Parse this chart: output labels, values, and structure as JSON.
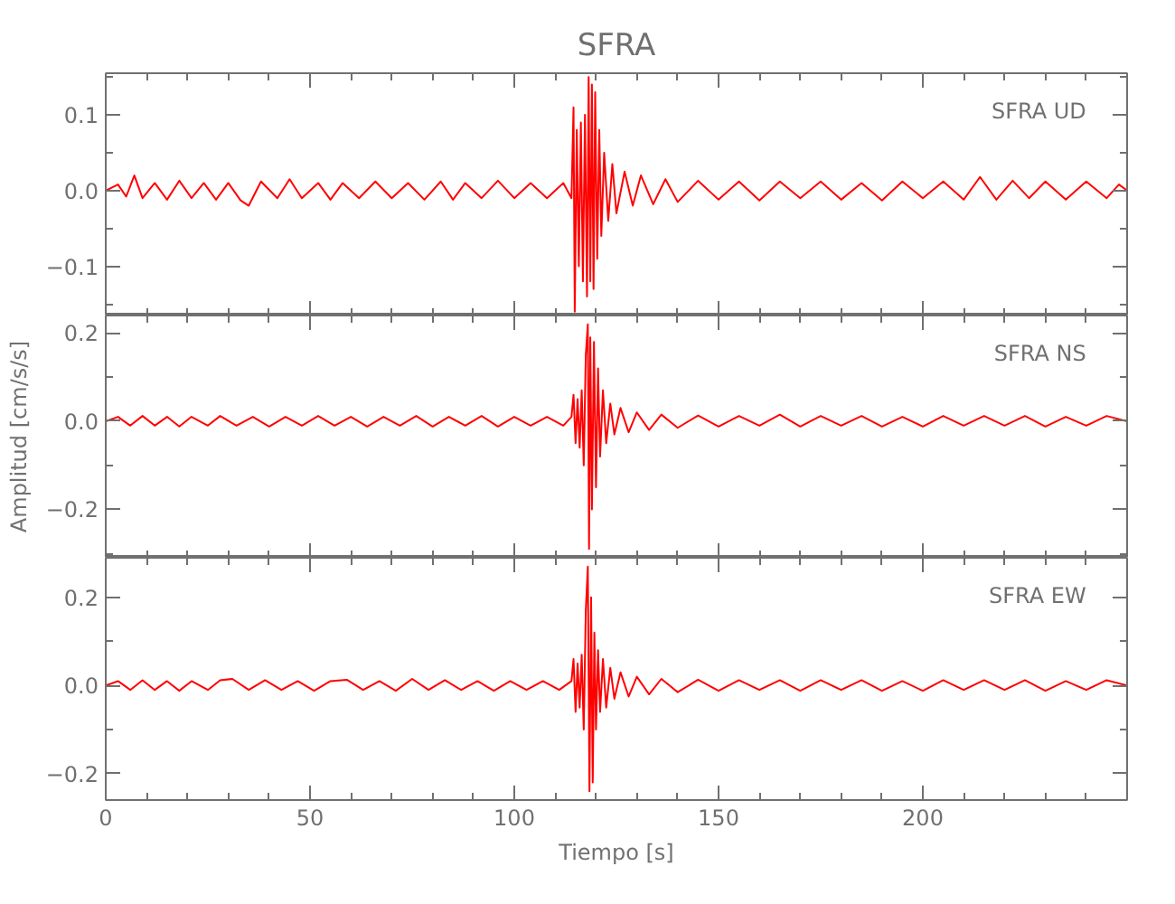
{
  "chart_data": [
    {
      "type": "line",
      "title": "SFRA",
      "annotations": [
        "SFRA   UD"
      ],
      "color": "#ff0000",
      "grid": false,
      "tick_labels": "y",
      "line_style": "solid",
      "x": [
        0,
        3,
        5,
        7,
        9,
        12,
        15,
        18,
        21,
        24,
        27,
        30,
        33,
        35,
        38,
        42,
        45,
        48,
        52,
        55,
        58,
        62,
        66,
        70,
        74,
        78,
        82,
        85,
        88,
        92,
        96,
        100,
        104,
        108,
        112,
        114,
        114.5,
        114.8,
        115.3,
        115.8,
        116.3,
        116.8,
        117.3,
        117.8,
        118.2,
        118.6,
        119.0,
        119.4,
        119.8,
        120.3,
        120.8,
        121.3,
        122,
        123,
        124,
        125,
        127,
        129,
        131,
        134,
        137,
        140,
        145,
        150,
        155,
        160,
        165,
        170,
        175,
        180,
        185,
        190,
        195,
        200,
        205,
        210,
        214,
        218,
        222,
        226,
        230,
        235,
        240,
        245,
        248,
        250
      ],
      "values": [
        0.0,
        0.008,
        -0.008,
        0.02,
        -0.01,
        0.01,
        -0.012,
        0.013,
        -0.01,
        0.01,
        -0.012,
        0.01,
        -0.013,
        -0.02,
        0.012,
        -0.01,
        0.015,
        -0.01,
        0.01,
        -0.012,
        0.01,
        -0.01,
        0.012,
        -0.01,
        0.01,
        -0.012,
        0.012,
        -0.012,
        0.01,
        -0.01,
        0.013,
        -0.01,
        0.01,
        -0.01,
        0.01,
        -0.01,
        0.11,
        -0.16,
        0.08,
        -0.1,
        0.09,
        -0.12,
        0.1,
        -0.14,
        0.15,
        -0.12,
        0.14,
        -0.13,
        0.13,
        -0.09,
        0.08,
        -0.06,
        0.05,
        -0.04,
        0.035,
        -0.03,
        0.025,
        -0.02,
        0.02,
        -0.018,
        0.015,
        -0.015,
        0.013,
        -0.012,
        0.012,
        -0.013,
        0.012,
        -0.01,
        0.012,
        -0.012,
        0.01,
        -0.013,
        0.012,
        -0.01,
        0.012,
        -0.012,
        0.018,
        -0.012,
        0.013,
        -0.01,
        0.012,
        -0.012,
        0.012,
        -0.01,
        0.008,
        0.0
      ],
      "xlim": [
        0,
        250
      ],
      "ylim": [
        -0.165,
        0.155
      ],
      "xticks": [
        0,
        {
          "value": 10,
          "label": null
        },
        {
          "value": 20,
          "label": null
        },
        {
          "value": 30,
          "label": null
        },
        {
          "value": 40,
          "label": null
        },
        50,
        {
          "value": 60,
          "label": null
        },
        {
          "value": 70,
          "label": null
        },
        {
          "value": 80,
          "label": null
        },
        {
          "value": 90,
          "label": null
        },
        100,
        {
          "value": 110,
          "label": null
        },
        {
          "value": 120,
          "label": null
        },
        {
          "value": 130,
          "label": null
        },
        {
          "value": 140,
          "label": null
        },
        150,
        {
          "value": 160,
          "label": null
        },
        {
          "value": 170,
          "label": null
        },
        {
          "value": 180,
          "label": null
        },
        {
          "value": 190,
          "label": null
        },
        200,
        {
          "value": 210,
          "label": null
        },
        {
          "value": 220,
          "label": null
        },
        {
          "value": 230,
          "label": null
        },
        {
          "value": 240,
          "label": null
        }
      ],
      "yticks": [
        {
          "value": -0.15,
          "label": null
        },
        -0.1,
        {
          "value": -0.05,
          "label": null
        },
        {
          "value": 0,
          "label": "0.0"
        },
        {
          "value": 0.05,
          "label": null
        },
        0.1,
        {
          "value": 0.15,
          "label": null
        }
      ]
    },
    {
      "type": "line",
      "ylabel": "Amplitud [cm/s/s]",
      "annotations": [
        "SFRA   NS"
      ],
      "color": "#ff0000",
      "grid": false,
      "tick_labels": "y",
      "line_style": "solid",
      "x": [
        0,
        3,
        6,
        9,
        12,
        15,
        18,
        21,
        25,
        28,
        32,
        36,
        40,
        44,
        48,
        52,
        56,
        60,
        64,
        68,
        72,
        76,
        80,
        84,
        88,
        92,
        96,
        100,
        104,
        108,
        112,
        114,
        114.5,
        115,
        115.5,
        116,
        116.5,
        117,
        117.5,
        118,
        118.3,
        118.6,
        119,
        119.5,
        120,
        120.5,
        121,
        121.7,
        122.5,
        123.5,
        124.5,
        126,
        128,
        130,
        133,
        136,
        140,
        145,
        150,
        155,
        160,
        165,
        170,
        175,
        180,
        185,
        190,
        195,
        200,
        205,
        210,
        215,
        220,
        225,
        230,
        235,
        240,
        245,
        250
      ],
      "values": [
        0.0,
        0.01,
        -0.01,
        0.012,
        -0.01,
        0.01,
        -0.012,
        0.01,
        -0.01,
        0.012,
        -0.01,
        0.01,
        -0.012,
        0.01,
        -0.01,
        0.012,
        -0.01,
        0.01,
        -0.012,
        0.01,
        -0.01,
        0.012,
        -0.012,
        0.01,
        -0.01,
        0.012,
        -0.012,
        0.01,
        -0.01,
        0.01,
        -0.01,
        0.01,
        0.06,
        -0.05,
        0.05,
        -0.06,
        0.07,
        -0.1,
        0.15,
        0.22,
        -0.29,
        0.19,
        -0.2,
        0.18,
        -0.15,
        0.12,
        -0.08,
        0.07,
        -0.05,
        0.04,
        -0.03,
        0.03,
        -0.025,
        0.02,
        -0.02,
        0.015,
        -0.015,
        0.013,
        -0.012,
        0.012,
        -0.01,
        0.015,
        -0.012,
        0.012,
        -0.01,
        0.012,
        -0.012,
        0.01,
        -0.012,
        0.012,
        -0.01,
        0.012,
        -0.01,
        0.012,
        -0.012,
        0.01,
        -0.01,
        0.012,
        0.0
      ],
      "xlim": [
        0,
        250
      ],
      "ylim": [
        -0.31,
        0.24
      ],
      "xticks": [
        0,
        {
          "value": 10,
          "label": null
        },
        {
          "value": 20,
          "label": null
        },
        {
          "value": 30,
          "label": null
        },
        {
          "value": 40,
          "label": null
        },
        50,
        {
          "value": 60,
          "label": null
        },
        {
          "value": 70,
          "label": null
        },
        {
          "value": 80,
          "label": null
        },
        {
          "value": 90,
          "label": null
        },
        100,
        {
          "value": 110,
          "label": null
        },
        {
          "value": 120,
          "label": null
        },
        {
          "value": 130,
          "label": null
        },
        {
          "value": 140,
          "label": null
        },
        150,
        {
          "value": 160,
          "label": null
        },
        {
          "value": 170,
          "label": null
        },
        {
          "value": 180,
          "label": null
        },
        {
          "value": 190,
          "label": null
        },
        200,
        {
          "value": 210,
          "label": null
        },
        {
          "value": 220,
          "label": null
        },
        {
          "value": 230,
          "label": null
        },
        {
          "value": 240,
          "label": null
        }
      ],
      "yticks": [
        {
          "value": -0.3,
          "label": null
        },
        -0.2,
        {
          "value": -0.1,
          "label": null
        },
        {
          "value": 0,
          "label": "0.0"
        },
        {
          "value": 0.1,
          "label": null
        },
        0.2
      ]
    },
    {
      "type": "line",
      "xlabel": "Tiempo [s]",
      "annotations": [
        "SFRA   EW"
      ],
      "color": "#ff0000",
      "grid": false,
      "line_style": "solid",
      "x": [
        0,
        3,
        6,
        9,
        12,
        15,
        18,
        21,
        25,
        28,
        31,
        35,
        39,
        43,
        47,
        51,
        55,
        59,
        63,
        67,
        71,
        75,
        79,
        83,
        87,
        91,
        95,
        99,
        103,
        107,
        111,
        114,
        114.5,
        115,
        115.5,
        116,
        116.5,
        117,
        117.5,
        118,
        118.4,
        118.8,
        119.2,
        119.6,
        120,
        120.5,
        121,
        121.7,
        122.5,
        123.5,
        124.5,
        126,
        128,
        130,
        133,
        136,
        140,
        145,
        150,
        155,
        160,
        165,
        170,
        175,
        180,
        185,
        190,
        195,
        200,
        205,
        210,
        215,
        220,
        225,
        230,
        235,
        240,
        245,
        250
      ],
      "values": [
        0.0,
        0.01,
        -0.01,
        0.012,
        -0.01,
        0.01,
        -0.012,
        0.01,
        -0.01,
        0.012,
        0.015,
        -0.01,
        0.012,
        -0.01,
        0.01,
        -0.012,
        0.01,
        0.013,
        -0.01,
        0.01,
        -0.012,
        0.015,
        -0.01,
        0.012,
        -0.01,
        0.01,
        -0.012,
        0.01,
        -0.01,
        0.01,
        -0.01,
        0.01,
        0.06,
        -0.06,
        0.05,
        -0.05,
        0.07,
        -0.1,
        0.17,
        0.27,
        -0.24,
        0.2,
        -0.22,
        0.12,
        -0.1,
        0.08,
        -0.06,
        0.06,
        -0.05,
        0.04,
        -0.03,
        0.03,
        -0.025,
        0.02,
        -0.02,
        0.015,
        -0.015,
        0.013,
        -0.012,
        0.012,
        -0.01,
        0.012,
        -0.012,
        0.012,
        -0.01,
        0.012,
        -0.012,
        0.01,
        -0.012,
        0.012,
        -0.01,
        0.012,
        -0.01,
        0.012,
        -0.012,
        0.01,
        -0.01,
        0.012,
        0.0
      ],
      "xlim": [
        0,
        250
      ],
      "ylim": [
        -0.26,
        0.29
      ],
      "xticks": [
        0,
        {
          "value": 10,
          "label": null
        },
        {
          "value": 20,
          "label": null
        },
        {
          "value": 30,
          "label": null
        },
        {
          "value": 40,
          "label": null
        },
        50,
        {
          "value": 60,
          "label": null
        },
        {
          "value": 70,
          "label": null
        },
        {
          "value": 80,
          "label": null
        },
        {
          "value": 90,
          "label": null
        },
        100,
        {
          "value": 110,
          "label": null
        },
        {
          "value": 120,
          "label": null
        },
        {
          "value": 130,
          "label": null
        },
        {
          "value": 140,
          "label": null
        },
        150,
        {
          "value": 160,
          "label": null
        },
        {
          "value": 170,
          "label": null
        },
        {
          "value": 180,
          "label": null
        },
        {
          "value": 190,
          "label": null
        },
        200,
        {
          "value": 210,
          "label": null
        },
        {
          "value": 220,
          "label": null
        },
        {
          "value": 230,
          "label": null
        },
        {
          "value": 240,
          "label": null
        }
      ],
      "yticks": [
        -0.2,
        {
          "value": -0.1,
          "label": null
        },
        {
          "value": 0,
          "label": "0.0"
        },
        {
          "value": 0.1,
          "label": null
        },
        0.2
      ]
    }
  ]
}
